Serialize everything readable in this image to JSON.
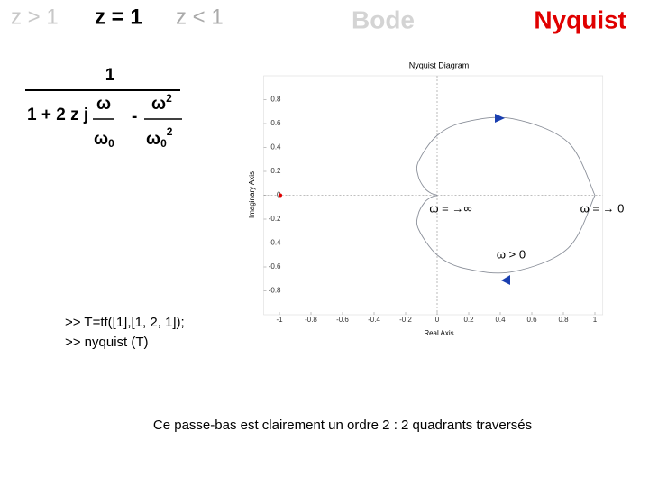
{
  "header": {
    "tabs": [
      "z > 1",
      "z = 1",
      "z < 1"
    ],
    "bode": "Bode",
    "nyquist": "Nyquist"
  },
  "formula": {
    "numerator": "1",
    "term1": "1 + 2 z j",
    "frac1_num": "ω",
    "frac1_den": "ω",
    "frac1_den_sub": "0",
    "minus": "-",
    "frac2_num": "ω",
    "frac2_num_sup": "2",
    "frac2_den": "ω",
    "frac2_den_sub": "0",
    "frac2_den_sup": "2"
  },
  "code": [
    ">> T=tf([1],[1, 2, 1]);",
    ">> nyquist (T)"
  ],
  "annotations": [
    "ω = →∞",
    "ω = → 0",
    "ω > 0"
  ],
  "caption": "Ce passe-bas est clairement un ordre 2 : 2 quadrants traversés",
  "chart_data": {
    "type": "line",
    "title": "Nyquist Diagram",
    "x_label": "Real Axis",
    "y_label": "Imaginary Axis",
    "x": [
      1,
      0.83,
      0.48,
      0.179,
      0,
      -0.118,
      -0.12,
      -0.08,
      -0.036,
      0,
      -0.036,
      -0.08,
      -0.12,
      -0.118,
      0,
      0.179,
      0.48,
      0.83,
      1
    ],
    "values": [
      0,
      -0.443,
      -0.64,
      -0.614,
      -0.5,
      -0.284,
      -0.16,
      -0.06,
      -0.015,
      0,
      0.015,
      0.06,
      0.16,
      0.284,
      0.5,
      0.614,
      0.64,
      0.443,
      0
    ],
    "color": "#8a8f99",
    "xlim": [
      -1.1,
      1.05
    ],
    "ylim": [
      -1,
      1
    ],
    "xticks": [
      -1,
      -0.8,
      -0.6,
      -0.4,
      -0.2,
      0,
      0.2,
      0.4,
      0.6,
      0.8,
      1
    ],
    "yticks": [
      -0.8,
      -0.6,
      -0.4,
      -0.2,
      0,
      0.2,
      0.4,
      0.6,
      0.8
    ],
    "grid": false
  }
}
